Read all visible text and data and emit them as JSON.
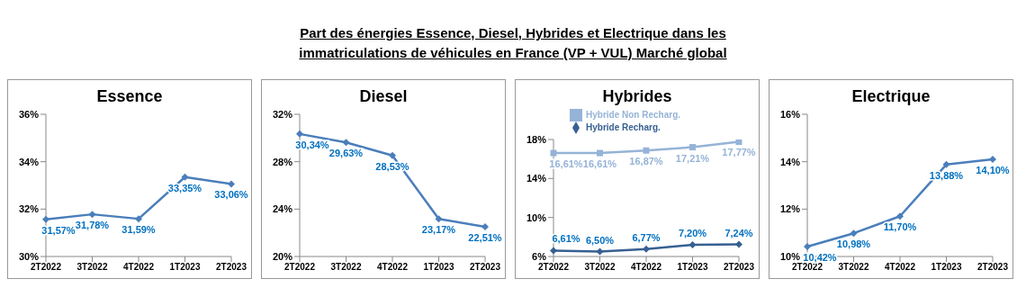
{
  "chart_data": [
    {
      "type": "line",
      "title": "Essence",
      "annotations": [
        "Part des énergies Essence, Diesel, Hybrides et Electrique dans les immatriculations de véhicules en France (VP + VUL) Marché global"
      ],
      "categories": [
        "2T2022",
        "3T2022",
        "4T2022",
        "1T2023",
        "2T2023"
      ],
      "series": [
        {
          "color": "#4a7ebb",
          "values": [
            31.57,
            31.78,
            31.59,
            33.35,
            33.06
          ],
          "value_labels": [
            "31,57%",
            "31,78%",
            "31,59%",
            "33,35%",
            "33,06%"
          ]
        }
      ],
      "ylim": [
        30,
        36
      ],
      "yticks": [
        {
          "value": 30,
          "label": "30%"
        },
        {
          "value": 32,
          "label": "32%"
        },
        {
          "value": 34,
          "label": "34%"
        },
        {
          "value": 36,
          "label": "36%"
        }
      ],
      "marker": "diamond",
      "legend": false
    },
    {
      "type": "line",
      "title": "Diesel",
      "categories": [
        "2T2022",
        "3T2022",
        "4T2022",
        "1T2023",
        "2T2023"
      ],
      "series": [
        {
          "color": "#4a7ebb",
          "values": [
            30.34,
            29.63,
            28.53,
            23.17,
            22.51
          ],
          "value_labels": [
            "30,34%",
            "29,63%",
            "28,53%",
            "23,17%",
            "22,51%"
          ]
        }
      ],
      "ylim": [
        20,
        32
      ],
      "yticks": [
        {
          "value": 20,
          "label": "20%"
        },
        {
          "value": 24,
          "label": "24%"
        },
        {
          "value": 28,
          "label": "28%"
        },
        {
          "value": 32,
          "label": "32%"
        }
      ],
      "marker": "diamond",
      "legend": false
    },
    {
      "type": "line",
      "title": "Hybrides",
      "categories": [
        "2T2022",
        "3T2022",
        "4T2022",
        "1T2023",
        "2T2023"
      ],
      "series": [
        {
          "name": "Hybride Non Recharg.",
          "color": "#95b3d7",
          "marker": "square",
          "values": [
            16.61,
            16.61,
            16.87,
            17.21,
            17.77
          ],
          "value_labels": [
            "16,61%",
            "16,61%",
            "16,87%",
            "17,21%",
            "17,77%"
          ]
        },
        {
          "name": "Hybride Recharg.",
          "color": "#376092",
          "marker": "diamond",
          "values": [
            6.61,
            6.5,
            6.77,
            7.2,
            7.24
          ],
          "value_labels": [
            "6,61%",
            "6,50%",
            "6,77%",
            "7,20%",
            "7,24%"
          ]
        }
      ],
      "ylim": [
        6,
        18
      ],
      "yticks": [
        {
          "value": 6,
          "label": "6%"
        },
        {
          "value": 10,
          "label": "10%"
        },
        {
          "value": 14,
          "label": "14%"
        },
        {
          "value": 18,
          "label": "18%"
        }
      ],
      "legend": "top"
    },
    {
      "type": "line",
      "title": "Electrique",
      "categories": [
        "2T2022",
        "3T2022",
        "4T2022",
        "1T2023",
        "2T2023"
      ],
      "series": [
        {
          "color": "#4a7ebb",
          "values": [
            10.42,
            10.98,
            11.7,
            13.88,
            14.1
          ],
          "value_labels": [
            "10,42%",
            "10,98%",
            "11,70%",
            "13,88%",
            "14,10%"
          ]
        }
      ],
      "ylim": [
        10,
        16
      ],
      "yticks": [
        {
          "value": 10,
          "label": "10%"
        },
        {
          "value": 12,
          "label": "12%"
        },
        {
          "value": 14,
          "label": "14%"
        },
        {
          "value": 16,
          "label": "16%"
        }
      ],
      "marker": "diamond",
      "legend": false
    }
  ]
}
